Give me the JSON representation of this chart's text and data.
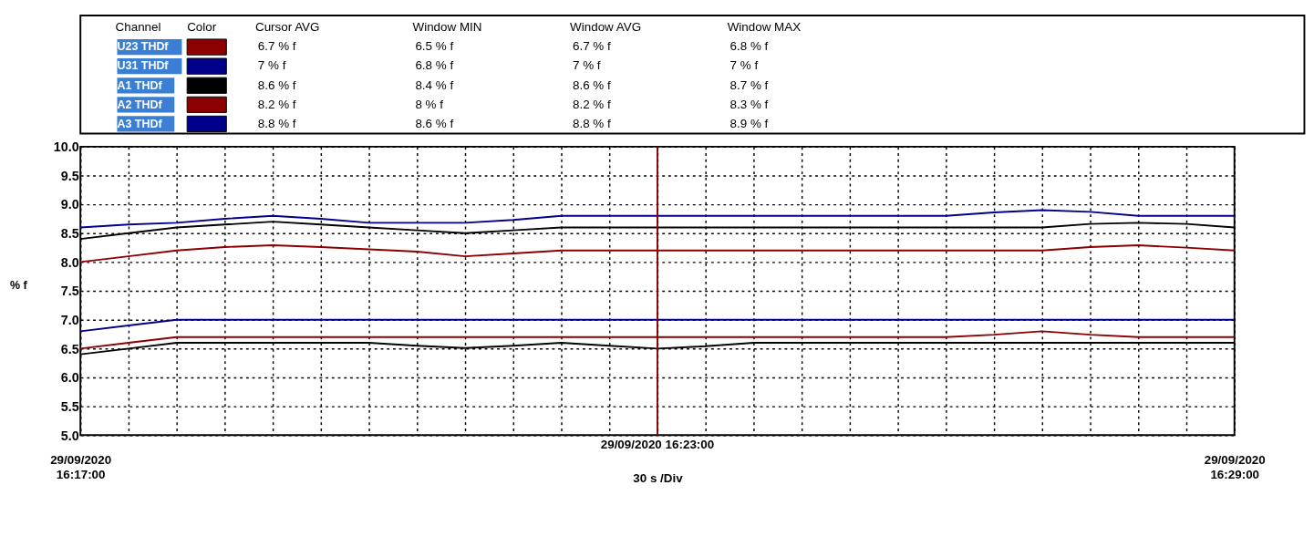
{
  "chart_data": {
    "type": "line",
    "xlabel": "30 s /Div",
    "ylabel": "% f",
    "legend": "top",
    "grid": true,
    "annotations": [
      "Channel",
      "Color",
      "Cursor AVG",
      "Window MIN",
      "Window AVG",
      "Window MAX",
      "6.7 % f",
      "6.5 % f",
      "6.7 % f",
      "6.8 % f",
      "7 % f",
      "6.8 % f",
      "7 % f",
      "7 % f",
      "8.6 % f",
      "8.4 % f",
      "8.6 % f",
      "8.7 % f",
      "8.2 % f",
      "8 % f",
      "8.2 % f",
      "8.3 % f",
      "8.8 % f",
      "8.6 % f",
      "8.8 % f",
      "8.9 % f"
    ],
    "ylim": [
      5,
      10
    ],
    "yticks": [
      {
        "value": 5,
        "label": "5.0"
      },
      {
        "value": 5.5,
        "label": "5.5"
      },
      {
        "value": 6,
        "label": "6.0"
      },
      {
        "value": 6.5,
        "label": "6.5"
      },
      {
        "value": 7,
        "label": "7.0"
      },
      {
        "value": 7.5,
        "label": "7.5"
      },
      {
        "value": 8,
        "label": "8.0"
      },
      {
        "value": 8.5,
        "label": "8.5"
      },
      {
        "value": 9,
        "label": "9.0"
      },
      {
        "value": 9.5,
        "label": "9.5"
      },
      {
        "value": 10,
        "label": "10.0"
      }
    ],
    "xlim": [
      "2020-09-29T16:17:00",
      "2020-09-29T16:29:00"
    ],
    "xticks": [
      {
        "value": "2020-09-29T16:17:00",
        "label": "29/09/2020 16:17:00"
      },
      {
        "value": "2020-09-29T16:17:30",
        "label": null
      },
      {
        "value": "2020-09-29T16:18:00",
        "label": null
      },
      {
        "value": "2020-09-29T16:18:30",
        "label": null
      },
      {
        "value": "2020-09-29T16:19:00",
        "label": null
      },
      {
        "value": "2020-09-29T16:19:30",
        "label": null
      },
      {
        "value": "2020-09-29T16:20:00",
        "label": null
      },
      {
        "value": "2020-09-29T16:20:30",
        "label": null
      },
      {
        "value": "2020-09-29T16:21:00",
        "label": null
      },
      {
        "value": "2020-09-29T16:21:30",
        "label": null
      },
      {
        "value": "2020-09-29T16:22:00",
        "label": null
      },
      {
        "value": "2020-09-29T16:22:30",
        "label": null
      },
      {
        "value": "2020-09-29T16:23:00",
        "label": null
      },
      {
        "value": "2020-09-29T16:23:30",
        "label": null
      },
      {
        "value": "2020-09-29T16:24:00",
        "label": null
      },
      {
        "value": "2020-09-29T16:24:30",
        "label": null
      },
      {
        "value": "2020-09-29T16:25:00",
        "label": null
      },
      {
        "value": "2020-09-29T16:25:30",
        "label": null
      },
      {
        "value": "2020-09-29T16:26:00",
        "label": null
      },
      {
        "value": "2020-09-29T16:26:30",
        "label": null
      },
      {
        "value": "2020-09-29T16:27:00",
        "label": null
      },
      {
        "value": "2020-09-29T16:27:30",
        "label": null
      },
      {
        "value": "2020-09-29T16:28:00",
        "label": null
      },
      {
        "value": "2020-09-29T16:28:30",
        "label": null
      },
      {
        "value": "2020-09-29T16:29:00",
        "label": "29/09/2020 16:29:00"
      }
    ],
    "ref_lines": [
      {
        "axis": "x",
        "value": "2020-09-29T16:23:00",
        "label": "29/09/2020 16:23:00",
        "color": "#8b0000"
      }
    ],
    "series": [
      {
        "name": "U23 THDf",
        "color": "#8b0000",
        "x": [
          "2020-09-29T16:17:00",
          "2020-09-29T16:17:30",
          "2020-09-29T16:18:00",
          "2020-09-29T16:26:00",
          "2020-09-29T16:26:30",
          "2020-09-29T16:27:00",
          "2020-09-29T16:27:30",
          "2020-09-29T16:28:00",
          "2020-09-29T16:29:00"
        ],
        "values": [
          6.5,
          6.6,
          6.7,
          6.7,
          6.74,
          6.8,
          6.74,
          6.7,
          6.7
        ]
      },
      {
        "name": "U31 THDf",
        "color": "#00008b",
        "x": [
          "2020-09-29T16:17:00",
          "2020-09-29T16:17:30",
          "2020-09-29T16:18:00",
          "2020-09-29T16:29:00"
        ],
        "values": [
          6.8,
          6.9,
          7.0,
          7.0
        ]
      },
      {
        "name": "A1 THDf",
        "color": "#000000",
        "x": [
          "2020-09-29T16:17:00",
          "2020-09-29T16:17:30",
          "2020-09-29T16:18:00",
          "2020-09-29T16:18:30",
          "2020-09-29T16:19:00",
          "2020-09-29T16:19:30",
          "2020-09-29T16:20:00",
          "2020-09-29T16:20:30",
          "2020-09-29T16:21:00",
          "2020-09-29T16:21:30",
          "2020-09-29T16:22:00",
          "2020-09-29T16:27:00",
          "2020-09-29T16:27:30",
          "2020-09-29T16:28:00",
          "2020-09-29T16:28:30",
          "2020-09-29T16:29:00"
        ],
        "values": [
          8.4,
          8.5,
          8.6,
          8.65,
          8.7,
          8.65,
          8.6,
          8.55,
          8.5,
          8.55,
          8.6,
          8.6,
          8.66,
          8.68,
          8.66,
          8.6
        ]
      },
      {
        "name": "A2 THDf",
        "color": "#8b0000",
        "x": [
          "2020-09-29T16:17:00",
          "2020-09-29T16:17:30",
          "2020-09-29T16:18:00",
          "2020-09-29T16:18:30",
          "2020-09-29T16:19:00",
          "2020-09-29T16:19:30",
          "2020-09-29T16:20:00",
          "2020-09-29T16:20:30",
          "2020-09-29T16:21:00",
          "2020-09-29T16:21:30",
          "2020-09-29T16:22:00",
          "2020-09-29T16:27:00",
          "2020-09-29T16:27:30",
          "2020-09-29T16:28:00",
          "2020-09-29T16:28:30",
          "2020-09-29T16:29:00"
        ],
        "values": [
          8.0,
          8.1,
          8.2,
          8.26,
          8.29,
          8.26,
          8.22,
          8.18,
          8.1,
          8.15,
          8.2,
          8.2,
          8.26,
          8.29,
          8.25,
          8.2
        ]
      },
      {
        "name": "A3 THDf",
        "color": "#00008b",
        "x": [
          "2020-09-29T16:17:00",
          "2020-09-29T16:17:30",
          "2020-09-29T16:18:00",
          "2020-09-29T16:18:30",
          "2020-09-29T16:19:00",
          "2020-09-29T16:19:30",
          "2020-09-29T16:20:00",
          "2020-09-29T16:20:30",
          "2020-09-29T16:21:00",
          "2020-09-29T16:21:30",
          "2020-09-29T16:22:00",
          "2020-09-29T16:26:00",
          "2020-09-29T16:26:30",
          "2020-09-29T16:27:00",
          "2020-09-29T16:27:30",
          "2020-09-29T16:28:00",
          "2020-09-29T16:29:00"
        ],
        "values": [
          8.6,
          8.65,
          8.68,
          8.75,
          8.8,
          8.75,
          8.68,
          8.68,
          8.68,
          8.73,
          8.8,
          8.8,
          8.86,
          8.9,
          8.87,
          8.8,
          8.8
        ]
      },
      {
        "color": "#000000",
        "x": [
          "2020-09-29T16:17:00",
          "2020-09-29T16:17:30",
          "2020-09-29T16:18:00",
          "2020-09-29T16:20:00",
          "2020-09-29T16:20:30",
          "2020-09-29T16:21:00",
          "2020-09-29T16:21:30",
          "2020-09-29T16:22:00",
          "2020-09-29T16:22:30",
          "2020-09-29T16:23:00",
          "2020-09-29T16:23:30",
          "2020-09-29T16:24:00",
          "2020-09-29T16:29:00"
        ],
        "values": [
          6.4,
          6.5,
          6.6,
          6.6,
          6.55,
          6.51,
          6.55,
          6.6,
          6.55,
          6.5,
          6.54,
          6.6,
          6.6
        ]
      }
    ]
  }
}
